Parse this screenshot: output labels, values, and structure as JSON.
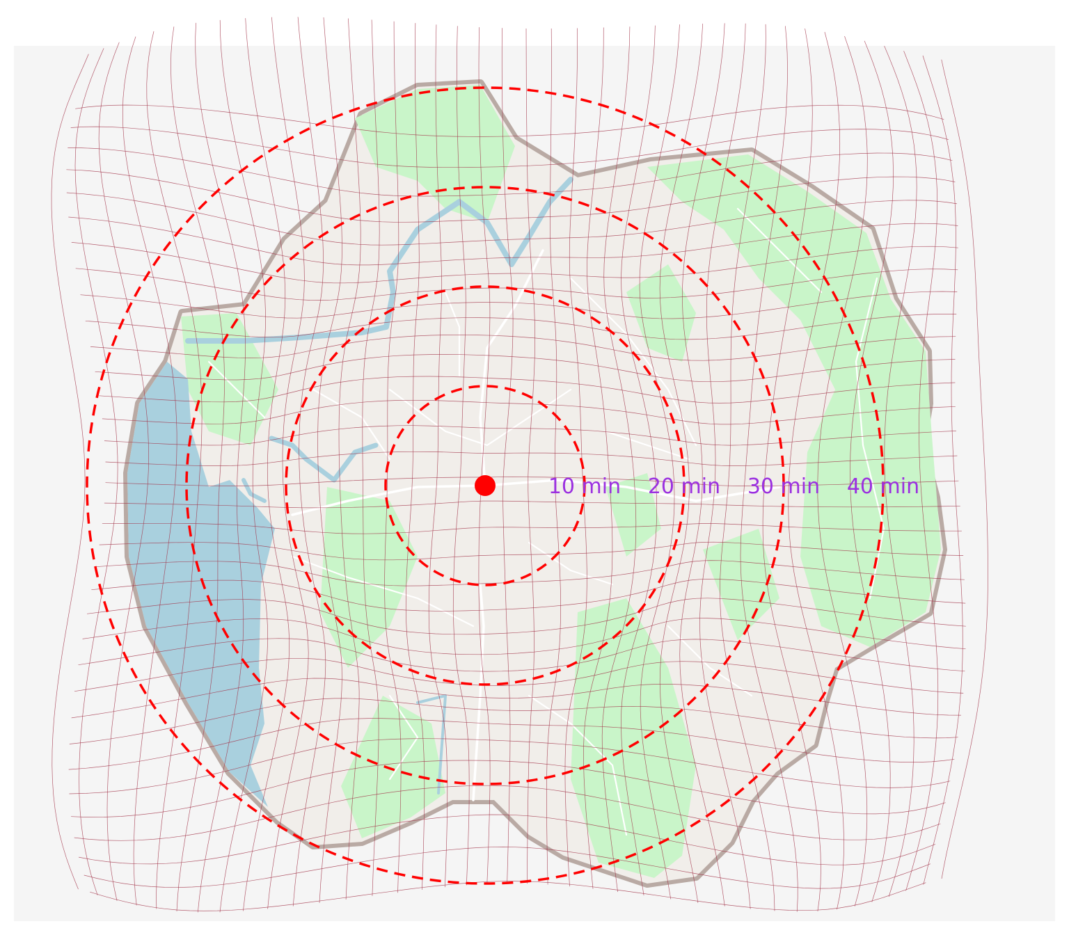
{
  "map": {
    "type": "isochrone-cartogram",
    "colors": {
      "page_background": "#ffffff",
      "frame_background": "#f5f5f5",
      "land": "#f1eeea",
      "park": "#c9f5c9",
      "water": "#a9d0de",
      "road": "#ffffff",
      "outline": "#b9aaa4",
      "grid": "#a3344a",
      "isochrone": "#ff0000",
      "label": "#9b30e0",
      "center_marker": "#ff0000"
    },
    "center": {
      "name": "origin-point"
    },
    "isochrones": [
      {
        "minutes": 10,
        "label": "10 min"
      },
      {
        "minutes": 20,
        "label": "20 min"
      },
      {
        "minutes": 30,
        "label": "30 min"
      },
      {
        "minutes": 40,
        "label": "40 min"
      }
    ],
    "layers": [
      "distorted-grid",
      "isochrone-rings",
      "travel-time-labels",
      "origin-marker"
    ]
  }
}
